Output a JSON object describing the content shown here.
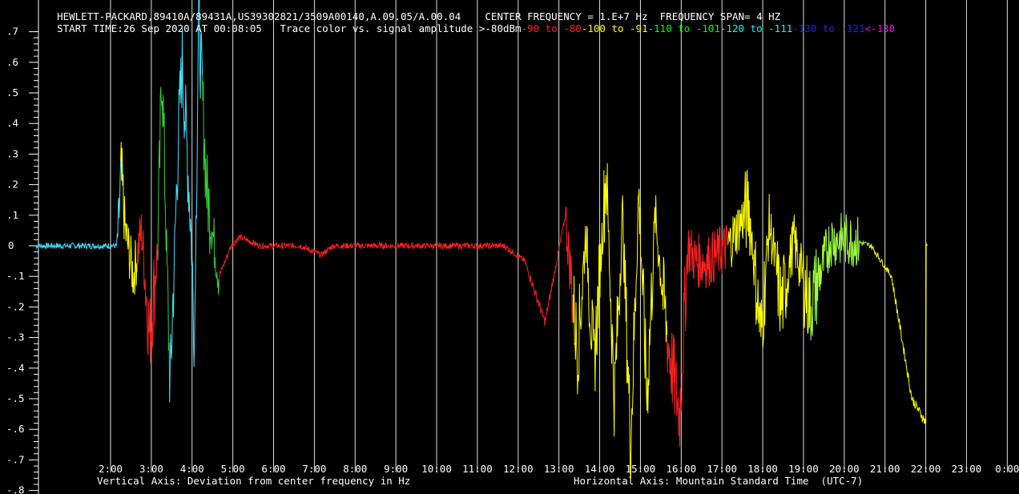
{
  "header": {
    "instrument": "HEWLETT-PACKARD,89410A/89431A,US39302821/3509A00140,A.09.05/A.00.04",
    "center_frequency": "CENTER FREQUENCY = 1.E+7 Hz",
    "frequency_span": "FREQUENCY SPAN= 4 HZ",
    "start_time": "START TIME:26 Sep 2020 AT 00:08:05",
    "legend_label": "Trace color vs. signal amplitude",
    "legend_entries": [
      {
        "text": ">-80dBm",
        "color": "#ffffff"
      },
      {
        "text": "-90 to -80",
        "color": "#ff2020"
      },
      {
        "text": "-100 to -91",
        "color": "#ffff00"
      },
      {
        "text": "-110 to -101",
        "color": "#00ff00"
      },
      {
        "text": "-120 to -111",
        "color": "#00ffff"
      },
      {
        "text": "-130 to -121",
        "color": "#2020ff"
      },
      {
        "text": "<-130",
        "color": "#ff00ff"
      }
    ]
  },
  "axis_titles": {
    "vertical": "Vertical Axis: Deviation from center frequency in Hz",
    "horizontal": "Horizontal Axis: Mountain Standard Time  (UTC-7)"
  },
  "chart_data": {
    "type": "line",
    "xlabel": "Horizontal Axis: Mountain Standard Time  (UTC-7)",
    "ylabel": "Vertical Axis: Deviation from center frequency in Hz",
    "x_tick_labels": [
      "2:00",
      "3:00",
      "4:00",
      "5:00",
      "6:00",
      "7:00",
      "8:00",
      "9:00",
      "10:00",
      "11:00",
      "12:00",
      "13:00",
      "14:00",
      "15:00",
      "16:00",
      "17:00",
      "18:00",
      "19:00",
      "20:00",
      "21:00",
      "22:00",
      "23:00",
      "0:00"
    ],
    "y_tick_labels": [
      ".7",
      ".6",
      ".5",
      ".4",
      ".3",
      ".2",
      ".1",
      "0",
      "-.1",
      "-.2",
      "-.3",
      "-.4",
      "-.5",
      "-.6",
      "-.7",
      "-.8"
    ],
    "ylim": [
      -0.8,
      0.7
    ],
    "grid": "vertical lines at each hour",
    "x": [
      0.13,
      1.2,
      2.0,
      2.1,
      2.2,
      2.4,
      2.6,
      2.8,
      3.0,
      3.1,
      3.3,
      3.5,
      3.6,
      3.8,
      3.9,
      4.0,
      4.2,
      4.5,
      4.8,
      5.0,
      5.5,
      6.0,
      6.5,
      7.0,
      7.3,
      7.6,
      8.0,
      8.5,
      9.0,
      9.5,
      10.0,
      10.5,
      11.0,
      11.5,
      12.0,
      12.5,
      13.0,
      13.3,
      13.5,
      13.7,
      14.0,
      14.2,
      14.4,
      14.6,
      14.8,
      15.0,
      15.2,
      15.5,
      15.8,
      16.0,
      16.2,
      16.5,
      17.0,
      17.5,
      17.8,
      18.0,
      18.3,
      18.6,
      19.0,
      19.5,
      20.0,
      20.5,
      21.0,
      21.5,
      21.85
    ],
    "y": [
      0.0,
      0.0,
      0.0,
      0.22,
      0.05,
      -0.1,
      0.05,
      -0.3,
      0.0,
      0.6,
      -0.47,
      0.35,
      0.6,
      0.1,
      -0.3,
      0.75,
      0.18,
      -0.1,
      0.0,
      0.03,
      0.0,
      0.0,
      0.0,
      -0.03,
      0.0,
      0.0,
      0.0,
      0.0,
      0.0,
      0.0,
      0.0,
      0.0,
      0.0,
      0.0,
      -0.05,
      -0.25,
      0.1,
      -0.35,
      0.05,
      -0.4,
      0.25,
      -0.5,
      0.1,
      -0.65,
      0.18,
      -0.5,
      0.1,
      -0.3,
      -0.55,
      0.0,
      -0.05,
      -0.05,
      0.0,
      0.13,
      -0.3,
      0.08,
      -0.2,
      0.02,
      -0.2,
      0.02,
      0.02,
      0.0,
      -0.1,
      -0.5,
      -0.58
    ],
    "x_note_unit": "hours after 2:00",
    "series_color_by_amplitude": true
  }
}
